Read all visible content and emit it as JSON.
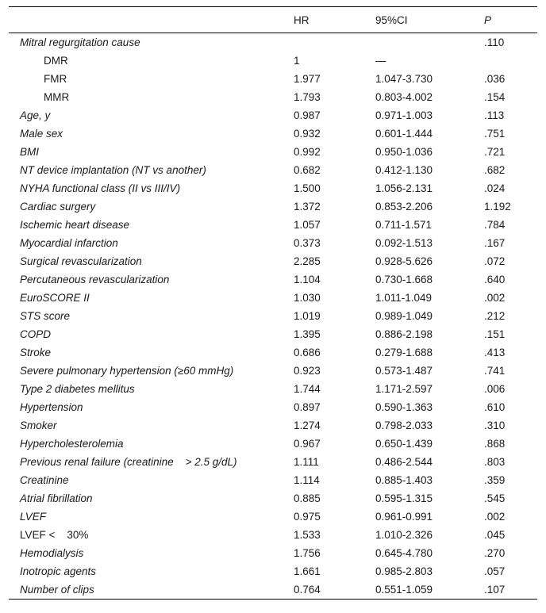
{
  "table": {
    "headers": {
      "variable": "",
      "hr": "HR",
      "ci": "95%CI",
      "p": "P"
    },
    "rows": [
      {
        "label": "Mitral regurgitation cause",
        "indent": false,
        "italic": true,
        "hr": "",
        "ci": "",
        "p": ".110"
      },
      {
        "label": "DMR",
        "indent": true,
        "italic": false,
        "hr": "1",
        "ci": "—",
        "p": ""
      },
      {
        "label": "FMR",
        "indent": true,
        "italic": false,
        "hr": "1.977",
        "ci": "1.047-3.730",
        "p": ".036"
      },
      {
        "label": "MMR",
        "indent": true,
        "italic": false,
        "hr": "1.793",
        "ci": "0.803-4.002",
        "p": ".154"
      },
      {
        "label": "Age, y",
        "indent": false,
        "italic": true,
        "hr": "0.987",
        "ci": "0.971-1.003",
        "p": ".113"
      },
      {
        "label": "Male sex",
        "indent": false,
        "italic": true,
        "hr": "0.932",
        "ci": "0.601-1.444",
        "p": ".751"
      },
      {
        "label": "BMI",
        "indent": false,
        "italic": true,
        "hr": "0.992",
        "ci": "0.950-1.036",
        "p": ".721"
      },
      {
        "label": "NT device implantation (NT vs another)",
        "indent": false,
        "italic": true,
        "hr": "0.682",
        "ci": "0.412-1.130",
        "p": ".682"
      },
      {
        "label": "NYHA functional class (II vs III/IV)",
        "indent": false,
        "italic": true,
        "hr": "1.500",
        "ci": "1.056-2.131",
        "p": ".024"
      },
      {
        "label": "Cardiac surgery",
        "indent": false,
        "italic": true,
        "hr": "1.372",
        "ci": "0.853-2.206",
        "p": "1.192"
      },
      {
        "label": "Ischemic heart disease",
        "indent": false,
        "italic": true,
        "hr": "1.057",
        "ci": "0.711-1.571",
        "p": ".784"
      },
      {
        "label": "Myocardial infarction",
        "indent": false,
        "italic": true,
        "hr": "0.373",
        "ci": "0.092-1.513",
        "p": ".167"
      },
      {
        "label": "Surgical revascularization",
        "indent": false,
        "italic": true,
        "hr": "2.285",
        "ci": "0.928-5.626",
        "p": ".072"
      },
      {
        "label": "Percutaneous revascularization",
        "indent": false,
        "italic": true,
        "hr": "1.104",
        "ci": "0.730-1.668",
        "p": ".640"
      },
      {
        "label": "EuroSCORE II",
        "indent": false,
        "italic": true,
        "hr": "1.030",
        "ci": "1.011-1.049",
        "p": ".002"
      },
      {
        "label": "STS score",
        "indent": false,
        "italic": true,
        "hr": "1.019",
        "ci": "0.989-1.049",
        "p": ".212"
      },
      {
        "label": "COPD",
        "indent": false,
        "italic": true,
        "hr": "1.395",
        "ci": "0.886-2.198",
        "p": ".151"
      },
      {
        "label": "Stroke",
        "indent": false,
        "italic": true,
        "hr": "0.686",
        "ci": "0.279-1.688",
        "p": ".413"
      },
      {
        "label": "Severe pulmonary hypertension (≥60 mmHg)",
        "indent": false,
        "italic": true,
        "hr": "0.923",
        "ci": "0.573-1.487",
        "p": ".741"
      },
      {
        "label": "Type 2 diabetes mellitus",
        "indent": false,
        "italic": true,
        "hr": "1.744",
        "ci": "1.171-2.597",
        "p": ".006"
      },
      {
        "label": "Hypertension",
        "indent": false,
        "italic": true,
        "hr": "0.897",
        "ci": "0.590-1.363",
        "p": ".610"
      },
      {
        "label": "Smoker",
        "indent": false,
        "italic": true,
        "hr": "1.274",
        "ci": "0.798-2.033",
        "p": ".310"
      },
      {
        "label": "Hypercholesterolemia",
        "indent": false,
        "italic": true,
        "hr": "0.967",
        "ci": "0.650-1.439",
        "p": ".868"
      },
      {
        "label": "Previous renal failure (creatinine    > 2.5 g/dL)",
        "indent": false,
        "italic": true,
        "hr": "1.111",
        "ci": "0.486-2.544",
        "p": ".803"
      },
      {
        "label": "Creatinine",
        "indent": false,
        "italic": true,
        "hr": "1.114",
        "ci": "0.885-1.403",
        "p": ".359"
      },
      {
        "label": "Atrial fibrillation",
        "indent": false,
        "italic": true,
        "hr": "0.885",
        "ci": "0.595-1.315",
        "p": ".545"
      },
      {
        "label": "LVEF",
        "indent": false,
        "italic": true,
        "hr": "0.975",
        "ci": "0.961-0.991",
        "p": ".002"
      },
      {
        "label": "LVEF <    30%",
        "indent": false,
        "italic": false,
        "hr": "1.533",
        "ci": "1.010-2.326",
        "p": ".045"
      },
      {
        "label": "Hemodialysis",
        "indent": false,
        "italic": true,
        "hr": "1.756",
        "ci": "0.645-4.780",
        "p": ".270"
      },
      {
        "label": "Inotropic agents",
        "indent": false,
        "italic": true,
        "hr": "1.661",
        "ci": "0.985-2.803",
        "p": ".057"
      },
      {
        "label": "Number of clips",
        "indent": false,
        "italic": true,
        "hr": "0.764",
        "ci": "0.551-1.059",
        "p": ".107"
      }
    ]
  }
}
